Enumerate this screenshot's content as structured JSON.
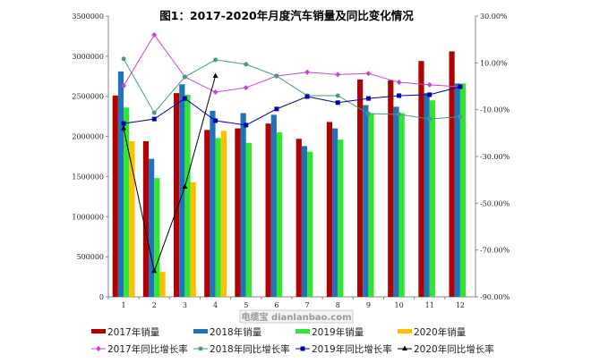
{
  "chart_data": {
    "type": "bar",
    "title": "图1：2017-2020年月度汽车销量及同比变化情况",
    "categories": [
      "1",
      "2",
      "3",
      "4",
      "5",
      "6",
      "7",
      "8",
      "9",
      "10",
      "11",
      "12"
    ],
    "y_left": {
      "range": [
        0,
        3500000
      ],
      "ticks": [
        "0",
        "500000",
        "1000000",
        "1500000",
        "2000000",
        "2500000",
        "3000000",
        "3500000"
      ]
    },
    "y_right": {
      "range": [
        -90,
        30
      ],
      "ticks": [
        "-90.00%",
        "-70.00%",
        "-50.00%",
        "-30.00%",
        "-10.00%",
        "10.00%",
        "30.00%"
      ]
    },
    "grid": false,
    "legend": "bottom",
    "bar_series": [
      {
        "name": "2017年销量",
        "color": "#b00000",
        "values": [
          2510000,
          1940000,
          2540000,
          2080000,
          2100000,
          2160000,
          1970000,
          2180000,
          2710000,
          2700000,
          2940000,
          3060000
        ]
      },
      {
        "name": "2018年销量",
        "color": "#1f73b8",
        "values": [
          2810000,
          1720000,
          2650000,
          2320000,
          2290000,
          2270000,
          1880000,
          2100000,
          2390000,
          2370000,
          2540000,
          2660000
        ]
      },
      {
        "name": "2019年销量",
        "color": "#33e533",
        "values": [
          2360000,
          1480000,
          2520000,
          1980000,
          1920000,
          2050000,
          1810000,
          1960000,
          2290000,
          2290000,
          2450000,
          2660000
        ]
      },
      {
        "name": "2020年销量",
        "color": "#ffc000",
        "values": [
          1940000,
          310000,
          1430000,
          2070000,
          null,
          null,
          null,
          null,
          null,
          null,
          null,
          null
        ]
      }
    ],
    "line_series": [
      {
        "name": "2017年同比增长率",
        "color": "#cc44cc",
        "marker": "diamond",
        "values": [
          0.2,
          22,
          4,
          -2.5,
          -0.6,
          4.4,
          6,
          5,
          5.5,
          1.7,
          0.6,
          -0.2
        ]
      },
      {
        "name": "2018年同比增长率",
        "color": "#4a9a88",
        "marker": "circle",
        "values": [
          11.7,
          -11.3,
          4,
          11.3,
          9.4,
          4.4,
          -4,
          -4,
          -11.7,
          -12,
          -14,
          -13
        ]
      },
      {
        "name": "2019年同比增长率",
        "color": "#0000aa",
        "marker": "square",
        "values": [
          -15.9,
          -14,
          -5.2,
          -14.7,
          -16.6,
          -9.7,
          -4.4,
          -7,
          -5.2,
          -4,
          -3.6,
          -0.2
        ]
      },
      {
        "name": "2020年同比增长率",
        "color": "#000000",
        "marker": "triangle",
        "values": [
          -18,
          -79,
          -43,
          4.4,
          null,
          null,
          null,
          null,
          null,
          null,
          null,
          null
        ]
      }
    ]
  },
  "watermark": "电缆宝 dianlanbao.com"
}
